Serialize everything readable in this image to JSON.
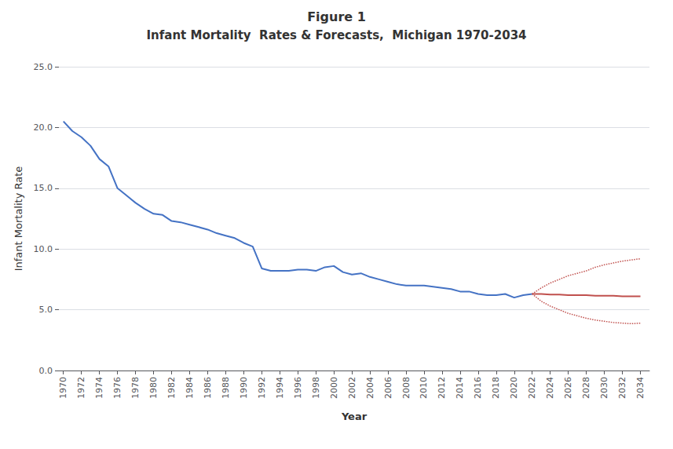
{
  "chart_data": {
    "type": "line",
    "title": "Figure 1",
    "subtitle": "Infant Mortality  Rates & Forecasts,  Michigan 1970-2034",
    "x_label": "Year",
    "y_label": "Infant Mortality Rate",
    "xlim": [
      1969.5,
      2035
    ],
    "xticks": [
      1970,
      1972,
      1974,
      1976,
      1978,
      1980,
      1982,
      1984,
      1986,
      1988,
      1990,
      1992,
      1994,
      1996,
      1998,
      2000,
      2002,
      2004,
      2006,
      2008,
      2010,
      2012,
      2014,
      2016,
      2018,
      2020,
      2022,
      2024,
      2026,
      2028,
      2030,
      2032,
      2034
    ],
    "ylim": [
      0.0,
      25.0
    ],
    "yticks": [
      {
        "value": 0,
        "label": "0.0"
      },
      {
        "value": 5,
        "label": "5.0"
      },
      {
        "value": 10,
        "label": "10.0"
      },
      {
        "value": 15,
        "label": "15.0"
      },
      {
        "value": 20,
        "label": "20.0"
      },
      {
        "value": 25,
        "label": "25.0"
      }
    ],
    "grid": true,
    "series": [
      {
        "color": "#4472C4",
        "line_style": "solid",
        "x": [
          1970,
          1971,
          1972,
          1973,
          1974,
          1975,
          1976,
          1977,
          1978,
          1979,
          1980,
          1981,
          1982,
          1983,
          1984,
          1985,
          1986,
          1987,
          1988,
          1989,
          1990,
          1991,
          1992,
          1993,
          1994,
          1995,
          1996,
          1997,
          1998,
          1999,
          2000,
          2001,
          2002,
          2003,
          2004,
          2005,
          2006,
          2007,
          2008,
          2009,
          2010,
          2011,
          2012,
          2013,
          2014,
          2015,
          2016,
          2017,
          2018,
          2019,
          2020,
          2021,
          2022
        ],
        "values": [
          20.5,
          19.7,
          19.2,
          18.5,
          17.4,
          16.8,
          15.0,
          14.4,
          13.8,
          13.3,
          12.9,
          12.8,
          12.3,
          12.2,
          12.0,
          11.8,
          11.6,
          11.3,
          11.1,
          10.9,
          10.5,
          10.2,
          8.4,
          8.2,
          8.2,
          8.2,
          8.3,
          8.3,
          8.2,
          8.5,
          8.6,
          8.1,
          7.9,
          8.0,
          7.7,
          7.5,
          7.3,
          7.1,
          7.0,
          7.0,
          7.0,
          6.9,
          6.8,
          6.7,
          6.5,
          6.5,
          6.3,
          6.2,
          6.2,
          6.3,
          6.0,
          6.2,
          6.3
        ]
      },
      {
        "color": "#C0504D",
        "line_style": "solid",
        "x": [
          2022,
          2023,
          2024,
          2025,
          2026,
          2027,
          2028,
          2029,
          2030,
          2031,
          2032,
          2033,
          2034
        ],
        "values": [
          6.3,
          6.3,
          6.25,
          6.25,
          6.2,
          6.2,
          6.2,
          6.15,
          6.15,
          6.15,
          6.1,
          6.1,
          6.1
        ]
      },
      {
        "color": "#C0504D",
        "line_style": "dotted",
        "x": [
          2022,
          2023,
          2024,
          2025,
          2026,
          2027,
          2028,
          2029,
          2030,
          2031,
          2032,
          2033,
          2034
        ],
        "values": [
          6.3,
          6.8,
          7.2,
          7.5,
          7.8,
          8.0,
          8.2,
          8.5,
          8.7,
          8.85,
          9.0,
          9.1,
          9.2
        ]
      },
      {
        "color": "#C0504D",
        "line_style": "dotted",
        "x": [
          2022,
          2023,
          2024,
          2025,
          2026,
          2027,
          2028,
          2029,
          2030,
          2031,
          2032,
          2033,
          2034
        ],
        "values": [
          6.3,
          5.7,
          5.3,
          5.0,
          4.7,
          4.5,
          4.3,
          4.15,
          4.05,
          3.95,
          3.9,
          3.85,
          3.9
        ]
      }
    ]
  }
}
